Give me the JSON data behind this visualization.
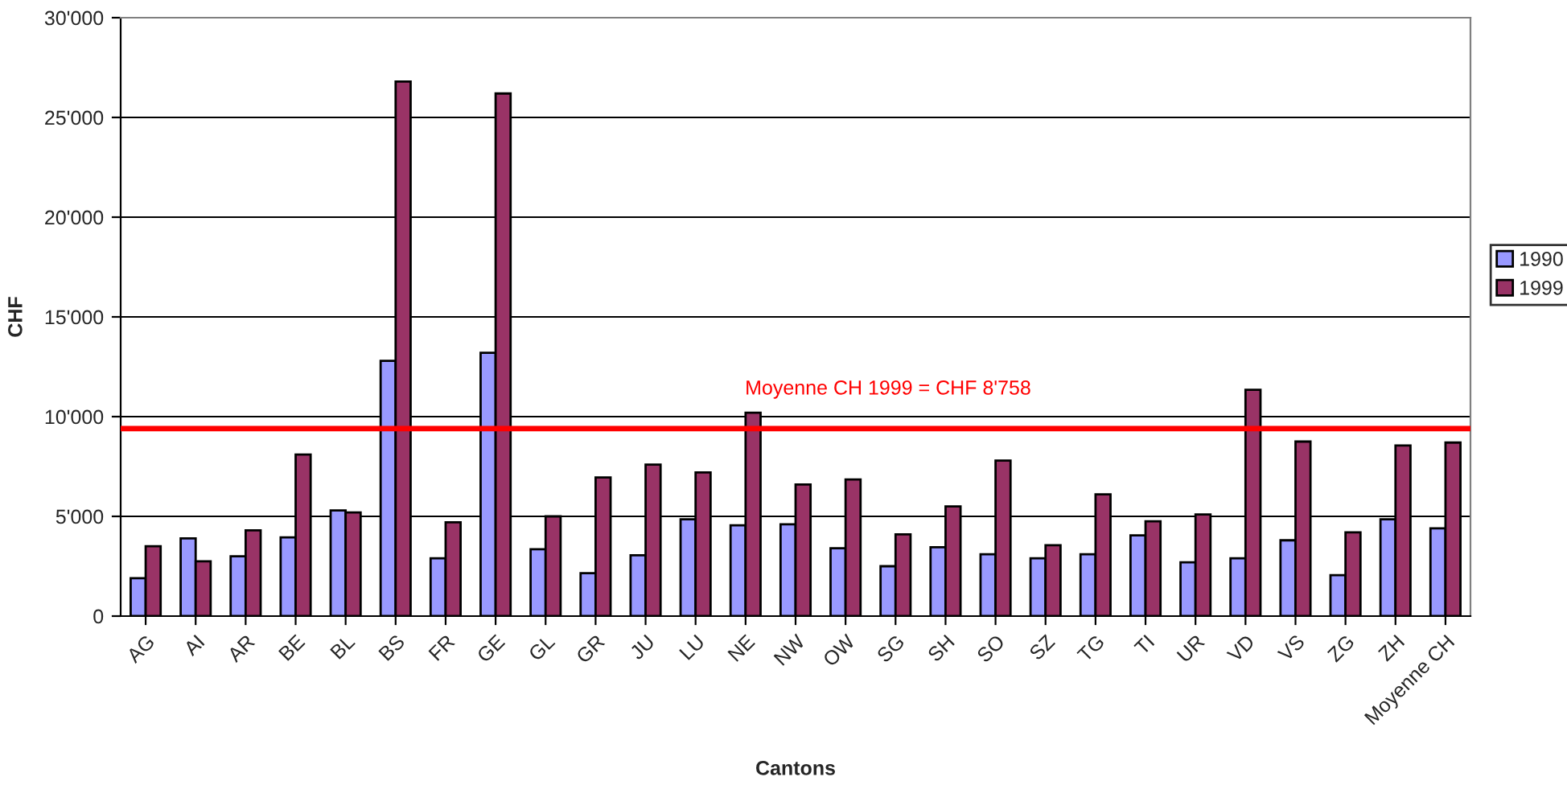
{
  "chart_data": {
    "type": "bar",
    "xlabel": "Cantons",
    "ylabel": "CHF",
    "categories": [
      "AG",
      "AI",
      "AR",
      "BE",
      "BL",
      "BS",
      "FR",
      "GE",
      "GL",
      "GR",
      "JU",
      "LU",
      "NE",
      "NW",
      "OW",
      "SG",
      "SH",
      "SO",
      "SZ",
      "TG",
      "TI",
      "UR",
      "VD",
      "VS",
      "ZG",
      "ZH",
      "Moyenne CH"
    ],
    "series": [
      {
        "name": "1990",
        "color": "#9999ff",
        "values": [
          1900,
          3900,
          3000,
          3950,
          5300,
          12800,
          2900,
          13200,
          3350,
          2150,
          3050,
          4850,
          4550,
          4600,
          3400,
          2500,
          3450,
          3100,
          2900,
          3100,
          4050,
          2700,
          2900,
          3800,
          2050,
          4850,
          4400
        ]
      },
      {
        "name": "1999",
        "color": "#993366",
        "values": [
          3500,
          2750,
          4300,
          8100,
          5200,
          26800,
          4700,
          26200,
          5000,
          6950,
          7600,
          7200,
          10200,
          6600,
          6850,
          4100,
          5500,
          7800,
          3550,
          6100,
          4750,
          5100,
          11350,
          8750,
          4200,
          8550,
          8700
        ]
      }
    ],
    "ylim": [
      0,
      30000
    ],
    "yticks": [
      {
        "value": 0,
        "label": "0"
      },
      {
        "value": 5000,
        "label": "5'000"
      },
      {
        "value": 10000,
        "label": "10'000"
      },
      {
        "value": 15000,
        "label": "15'000"
      },
      {
        "value": 20000,
        "label": "20'000"
      },
      {
        "value": 25000,
        "label": "25'000"
      },
      {
        "value": 30000,
        "label": "30'000"
      }
    ],
    "ref_lines": [
      {
        "axis": "y",
        "value": 9400,
        "label": "Moyenne CH 1999 = CHF 8'758",
        "color": "#ff0000",
        "line_style": "solid"
      }
    ],
    "grid": "y",
    "legend": "right"
  }
}
